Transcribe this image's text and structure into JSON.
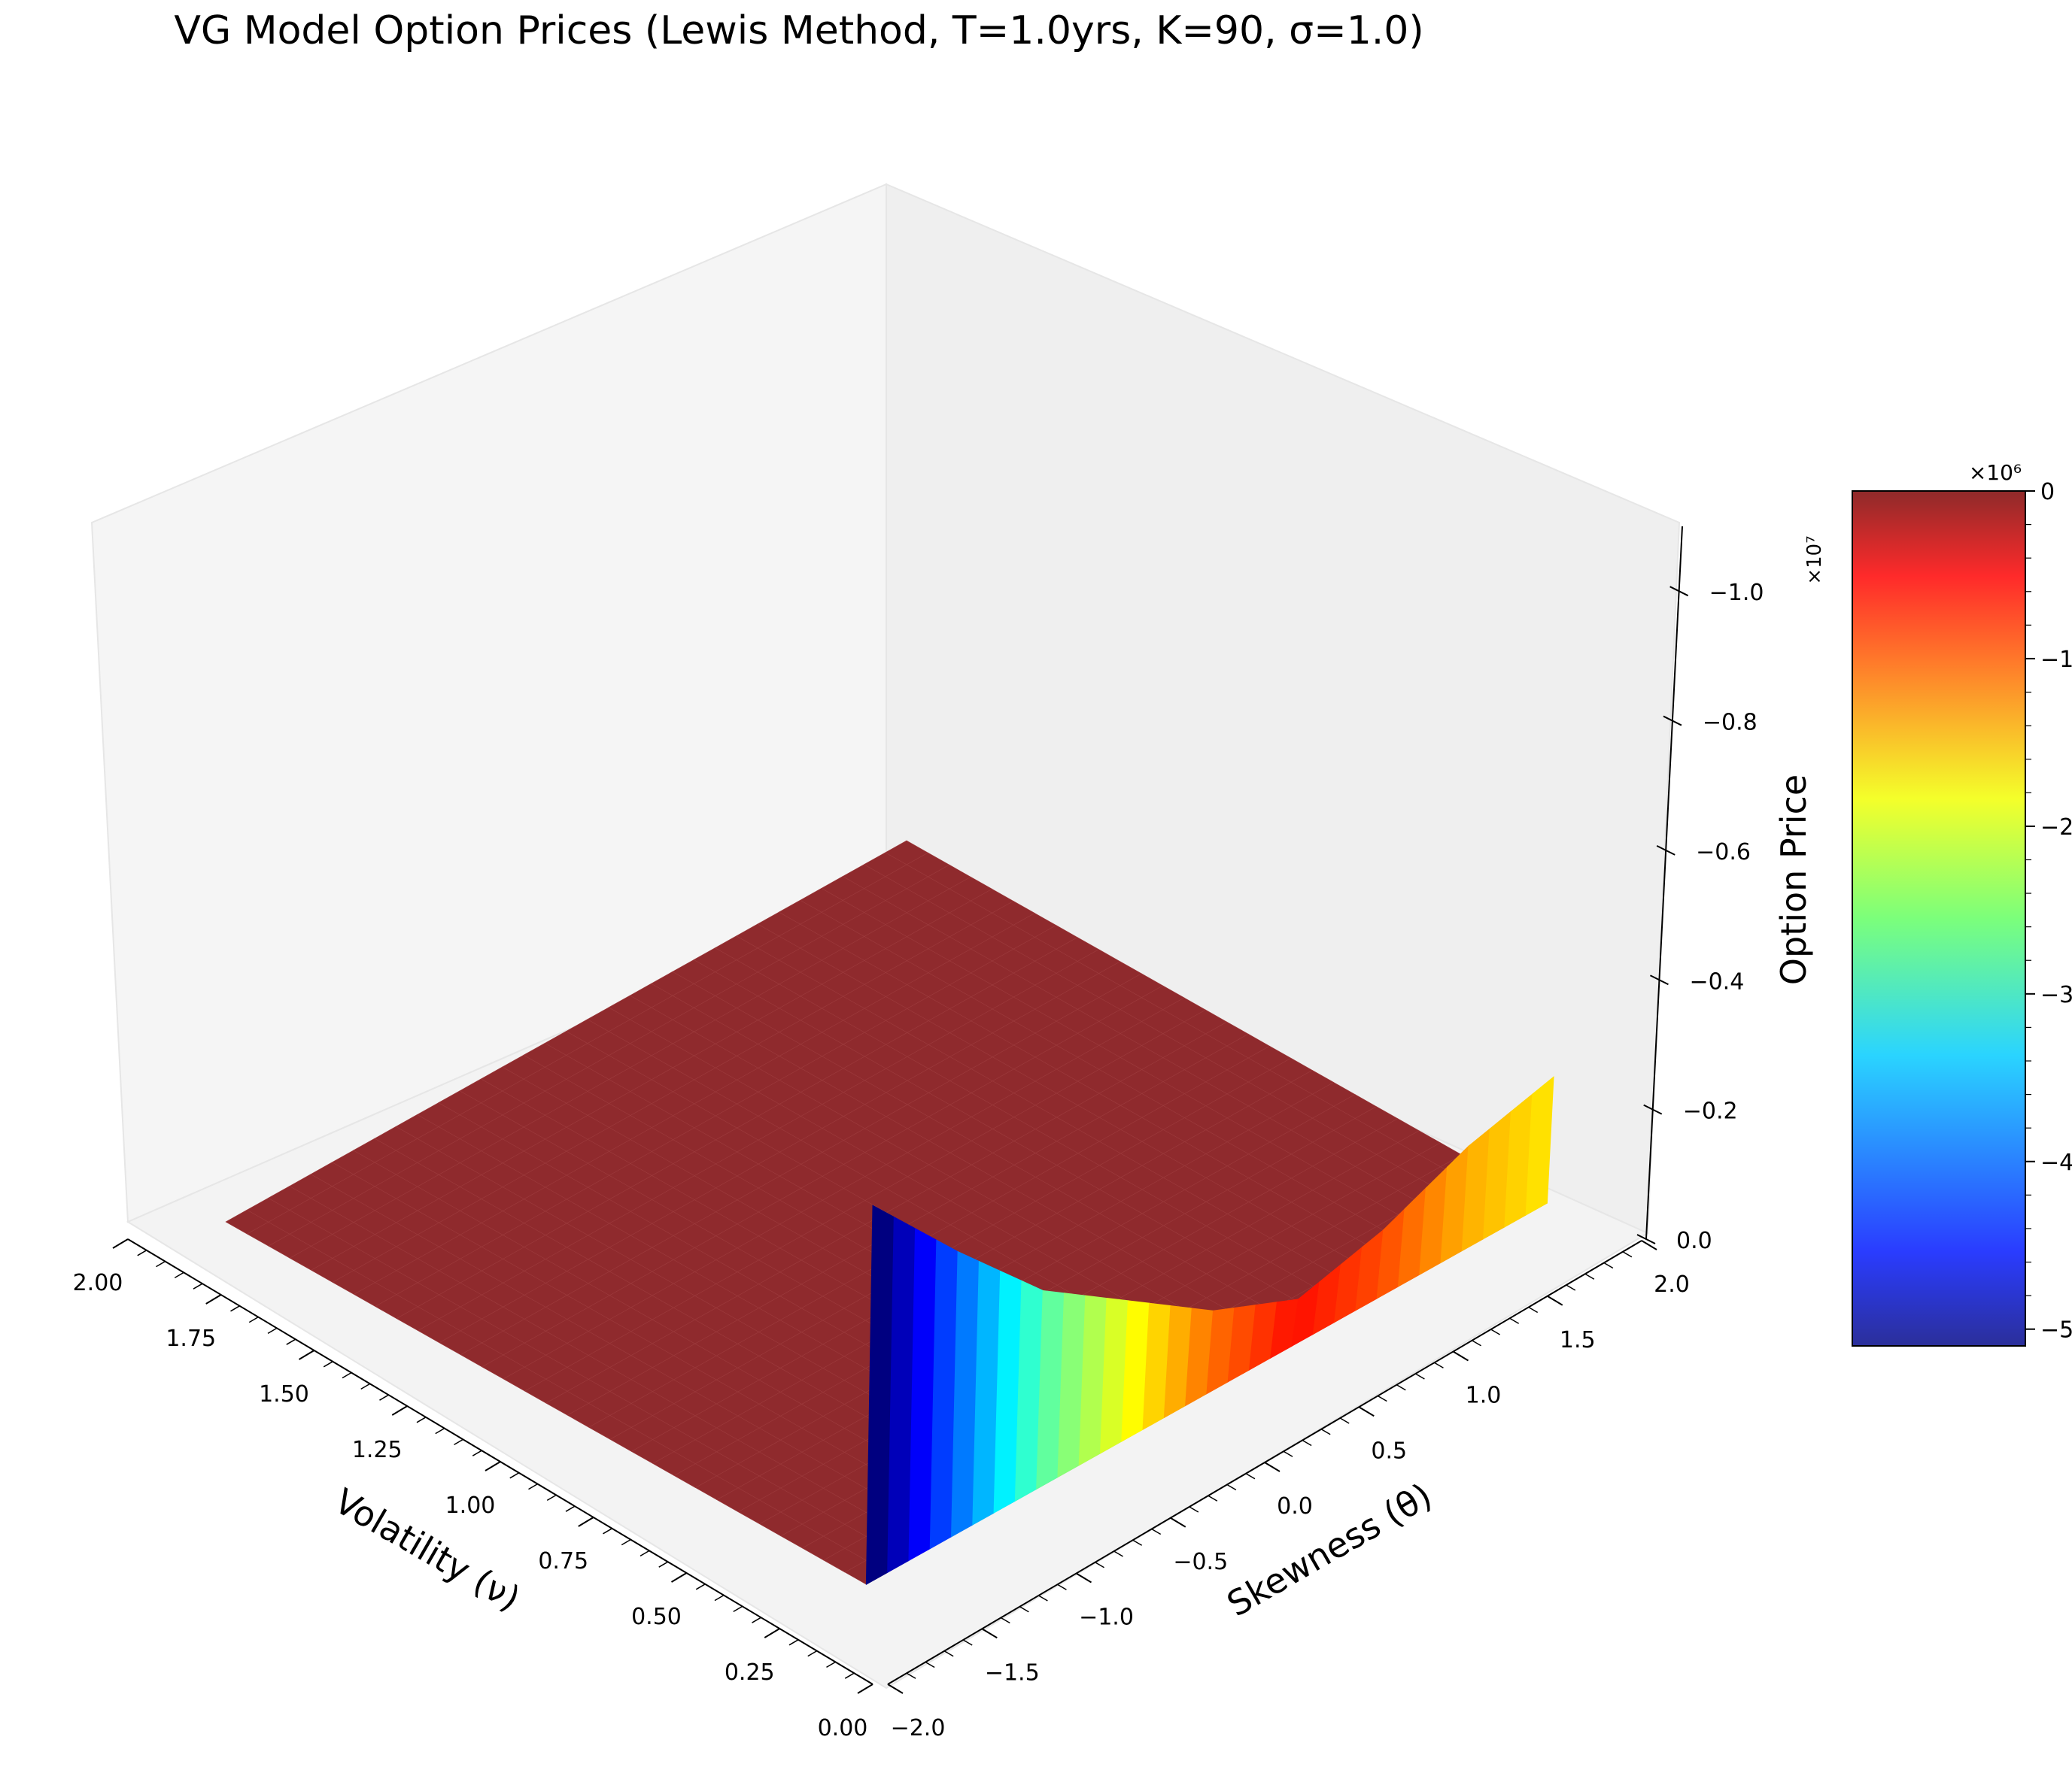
{
  "chart_data": {
    "type": "surface3d",
    "title": "VG Model Option Prices (Lewis Method, T=1.0yrs, K=90, σ=1.0)",
    "xlabel": "Volatility (ν)",
    "ylabel": "Skewness (θ)",
    "zlabel": "Option Price",
    "x_ticks": [
      "0.00",
      "0.25",
      "0.50",
      "0.75",
      "1.00",
      "1.25",
      "1.50",
      "1.75",
      "2.00"
    ],
    "y_ticks": [
      "−2.0",
      "−1.5",
      "−1.0",
      "−0.5",
      "0.0",
      "0.5",
      "1.0",
      "1.5",
      "2.0"
    ],
    "z_ticks": [
      "0.0",
      "−0.2",
      "−0.4",
      "−0.6",
      "−0.8",
      "−1.0"
    ],
    "z_offset_text": "×10⁷",
    "xlim": [
      0,
      2
    ],
    "ylim": [
      -2,
      2
    ],
    "zlim": [
      0,
      -1.0
    ],
    "zscale": 10000000,
    "colormap": "jet",
    "colorbar": {
      "ticks": [
        "0",
        "−1",
        "−2",
        "−3",
        "−4",
        "−5"
      ],
      "offset_text": "×10⁶",
      "range": [
        -5.1,
        0
      ]
    },
    "surface": {
      "note_values": "option price in units of 1e7 at nu = 0 edge, by theta",
      "theta": [
        -2.0,
        -1.5,
        -1.0,
        -0.5,
        0.0,
        0.5,
        1.0,
        1.5,
        2.0
      ],
      "price_at_nu0": [
        -0.53,
        -0.4,
        -0.28,
        -0.2,
        -0.12,
        -0.07,
        -0.1,
        -0.15,
        -0.18
      ],
      "price_for_nu_positive": 0
    }
  }
}
